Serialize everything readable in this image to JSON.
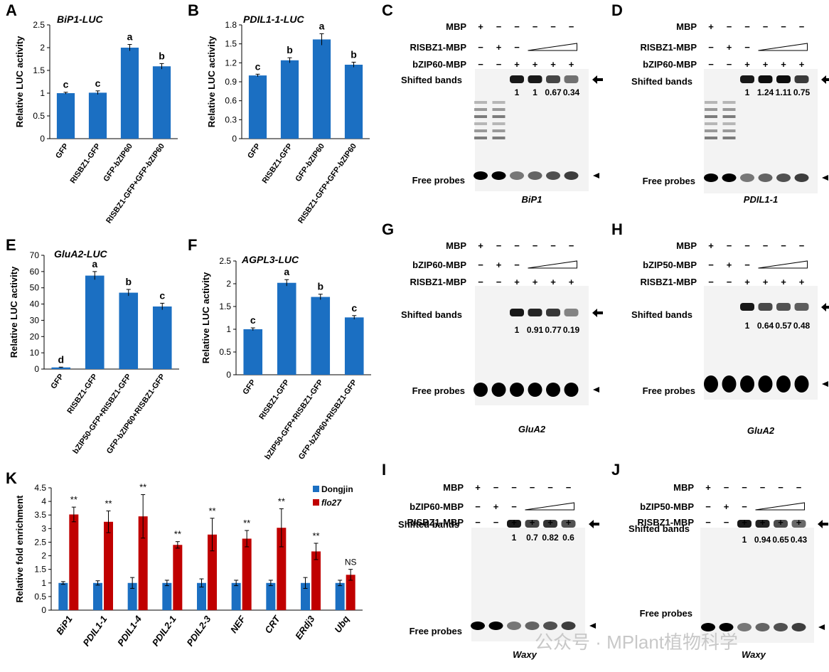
{
  "figure": {
    "colors": {
      "bar": "#1b6fc2",
      "red": "#c00000",
      "axis": "#000000"
    },
    "bar_panels": [
      {
        "letter": "A",
        "title": "BiP1-LUC",
        "ylabel": "Relative LUC activity",
        "ylim": [
          0,
          2.5
        ],
        "ticks": [
          "0",
          "0.5",
          "1",
          "1.5",
          "2",
          "2.5"
        ],
        "tick_values": [
          0,
          0.5,
          1,
          1.5,
          2,
          2.5
        ],
        "categories": [
          "GFP",
          "RISBZ1-GFP",
          "GFP-bZIP60",
          "RISBZ1-GFP+GFP-bZIP60"
        ],
        "values": [
          1.0,
          1.01,
          2.0,
          1.59
        ],
        "errors": [
          0.02,
          0.04,
          0.07,
          0.06
        ],
        "letters": [
          "c",
          "c",
          "a",
          "b"
        ]
      },
      {
        "letter": "B",
        "title": "PDIL1-1-LUC",
        "ylabel": "Relative LUC activity",
        "ylim": [
          0,
          1.8
        ],
        "ticks": [
          "0",
          "0.3",
          "0.6",
          "0.9",
          "1.2",
          "1.5",
          "1.8"
        ],
        "tick_values": [
          0,
          0.3,
          0.6,
          0.9,
          1.2,
          1.5,
          1.8
        ],
        "categories": [
          "GFP",
          "RISBZ1-GFP",
          "GFP-bZIP60",
          "RISBZ1-GFP+GFP-bZIP60"
        ],
        "values": [
          1.0,
          1.24,
          1.57,
          1.17
        ],
        "errors": [
          0.02,
          0.04,
          0.09,
          0.04
        ],
        "letters": [
          "c",
          "b",
          "a",
          "b"
        ]
      },
      {
        "letter": "E",
        "title": "GluA2-LUC",
        "ylabel": "Relative LUC activity",
        "ylim": [
          0,
          70
        ],
        "ticks": [
          "0",
          "10",
          "20",
          "30",
          "40",
          "50",
          "60",
          "70"
        ],
        "tick_values": [
          0,
          10,
          20,
          30,
          40,
          50,
          60,
          70
        ],
        "categories": [
          "GFP",
          "RISBZ1-GFP",
          "bZIP50-GFP+RISBZ1-GFP",
          "GFP-bZIP60+RISBZ1-GFP"
        ],
        "values": [
          1.0,
          57.5,
          47.0,
          38.5
        ],
        "errors": [
          0.2,
          2.5,
          2.0,
          2.0
        ],
        "letters": [
          "d",
          "a",
          "b",
          "c"
        ]
      },
      {
        "letter": "F",
        "title": "AGPL3-LUC",
        "ylabel": "Relative LUC activity",
        "ylim": [
          0,
          2.5
        ],
        "ticks": [
          "0",
          "0.5",
          "1",
          "1.5",
          "2",
          "2.5"
        ],
        "tick_values": [
          0,
          0.5,
          1,
          1.5,
          2,
          2.5
        ],
        "categories": [
          "GFP",
          "RISBZ1-GFP",
          "bZIP50-GFP+RISBZ1-GFP",
          "GFP-bZIP60+RISBZ1-GFP"
        ],
        "values": [
          1.0,
          2.02,
          1.71,
          1.26
        ],
        "errors": [
          0.03,
          0.07,
          0.06,
          0.04
        ],
        "letters": [
          "c",
          "a",
          "b",
          "c"
        ]
      }
    ],
    "chip_panel": {
      "letter": "K",
      "ylabel": "Relative fold enrichment",
      "ylim": [
        0,
        4.5
      ],
      "ticks": [
        "0",
        "0.5",
        "1",
        "1.5",
        "2",
        "2.5",
        "3",
        "3.5",
        "4",
        "4.5"
      ],
      "tick_values": [
        0,
        0.5,
        1,
        1.5,
        2,
        2.5,
        3,
        3.5,
        4,
        4.5
      ],
      "categories": [
        "BiP1",
        "PDIL1-1",
        "PDIL1-4",
        "PDIL2-1",
        "PDIL2-3",
        "NEF",
        "CRT",
        "ERdj3",
        "Ubq"
      ],
      "series": [
        {
          "name": "Dongjin",
          "values": [
            1.0,
            1.0,
            1.0,
            1.0,
            1.0,
            1.0,
            1.0,
            1.0,
            1.0
          ],
          "errors": [
            0.05,
            0.08,
            0.2,
            0.1,
            0.15,
            0.1,
            0.1,
            0.2,
            0.1
          ]
        },
        {
          "name": "flo27",
          "values": [
            3.52,
            3.25,
            3.45,
            2.4,
            2.78,
            2.63,
            3.03,
            2.16,
            1.3
          ],
          "errors": [
            0.27,
            0.4,
            0.8,
            0.12,
            0.6,
            0.3,
            0.7,
            0.3,
            0.2
          ]
        }
      ],
      "sig": [
        "**",
        "**",
        "**",
        "**",
        "**",
        "**",
        "**",
        "**",
        "NS"
      ]
    },
    "emsa_panels": [
      {
        "letter": "C",
        "rows": [
          {
            "label": "MBP",
            "symbols": [
              "+",
              "−",
              "−",
              "−",
              "−",
              "−"
            ]
          },
          {
            "label": "RISBZ1-MBP",
            "symbols": [
              "−",
              "+",
              "−"
            ]
          },
          {
            "label": "bZIP60-MBP",
            "symbols": [
              "−",
              "−",
              "+",
              "+",
              "+",
              "+"
            ]
          }
        ],
        "shifted_label": "Shifted bands",
        "free_label": "Free probes",
        "quant": [
          "1",
          "1",
          "0.67",
          "0.34"
        ],
        "gene": "BiP1"
      },
      {
        "letter": "D",
        "rows": [
          {
            "label": "MBP",
            "symbols": [
              "+",
              "−",
              "−",
              "−",
              "−",
              "−"
            ]
          },
          {
            "label": "RISBZ1-MBP",
            "symbols": [
              "−",
              "+",
              "−"
            ]
          },
          {
            "label": "bZIP60-MBP",
            "symbols": [
              "−",
              "−",
              "+",
              "+",
              "+",
              "+"
            ]
          }
        ],
        "shifted_label": "Shifted bands",
        "free_label": "Free probes",
        "quant": [
          "1",
          "1.24",
          "1.11",
          "0.75"
        ],
        "gene": "PDIL1-1"
      },
      {
        "letter": "G",
        "rows": [
          {
            "label": "MBP",
            "symbols": [
              "+",
              "−",
              "−",
              "−",
              "−",
              "−"
            ]
          },
          {
            "label": "bZIP60-MBP",
            "symbols": [
              "−",
              "+",
              "−"
            ]
          },
          {
            "label": "RISBZ1-MBP",
            "symbols": [
              "−",
              "−",
              "+",
              "+",
              "+",
              "+"
            ]
          }
        ],
        "shifted_label": "Shifted bands",
        "free_label": "Free probes",
        "quant": [
          "1",
          "0.91",
          "0.77",
          "0.19"
        ],
        "gene": "GluA2"
      },
      {
        "letter": "H",
        "rows": [
          {
            "label": "MBP",
            "symbols": [
              "+",
              "−",
              "−",
              "−",
              "−",
              "−"
            ]
          },
          {
            "label": "bZIP50-MBP",
            "symbols": [
              "−",
              "+",
              "−"
            ]
          },
          {
            "label": "RISBZ1-MBP",
            "symbols": [
              "−",
              "−",
              "+",
              "+",
              "+",
              "+"
            ]
          }
        ],
        "shifted_label": "Shifted bands",
        "free_label": "Free probes",
        "quant": [
          "1",
          "0.64",
          "0.57",
          "0.48"
        ],
        "gene": "GluA2"
      },
      {
        "letter": "I",
        "rows": [
          {
            "label": "MBP",
            "symbols": [
              "+",
              "−",
              "−",
              "−",
              "−",
              "−"
            ]
          },
          {
            "label": "bZIP60-MBP",
            "symbols": [
              "−",
              "+",
              "−"
            ]
          },
          {
            "label": "RISBZ1-MBP",
            "symbols": [
              "−",
              "−",
              "+",
              "+",
              "+",
              "+"
            ]
          }
        ],
        "shifted_label": "Shifted bands",
        "free_label": "Free probes",
        "quant": [
          "1",
          "0.7",
          "0.82",
          "0.6"
        ],
        "gene": "Waxy"
      },
      {
        "letter": "J",
        "rows": [
          {
            "label": "MBP",
            "symbols": [
              "+",
              "−",
              "−",
              "−",
              "−",
              "−"
            ]
          },
          {
            "label": "bZIP50-MBP",
            "symbols": [
              "−",
              "+",
              "−"
            ]
          },
          {
            "label": "RISBZ1-MBP",
            "symbols": [
              "−",
              "−",
              "+",
              "+",
              "+",
              "+"
            ]
          }
        ],
        "shifted_label": "Shifted bands",
        "free_label": "Free probes",
        "quant": [
          "1",
          "0.94",
          "0.65",
          "0.43"
        ],
        "gene": "Waxy"
      }
    ],
    "watermark": "公众号 · MPlant植物科学"
  },
  "chart_data": [
    {
      "type": "bar",
      "title": "BiP1-LUC",
      "ylabel": "Relative LUC activity",
      "ylim": [
        0,
        2.5
      ],
      "categories": [
        "GFP",
        "RISBZ1-GFP",
        "GFP-bZIP60",
        "RISBZ1-GFP+GFP-bZIP60"
      ],
      "values": [
        1.0,
        1.01,
        2.0,
        1.59
      ]
    },
    {
      "type": "bar",
      "title": "PDIL1-1-LUC",
      "ylabel": "Relative LUC activity",
      "ylim": [
        0,
        1.8
      ],
      "categories": [
        "GFP",
        "RISBZ1-GFP",
        "GFP-bZIP60",
        "RISBZ1-GFP+GFP-bZIP60"
      ],
      "values": [
        1.0,
        1.24,
        1.57,
        1.17
      ]
    },
    {
      "type": "bar",
      "title": "GluA2-LUC",
      "ylabel": "Relative LUC activity",
      "ylim": [
        0,
        70
      ],
      "categories": [
        "GFP",
        "RISBZ1-GFP",
        "bZIP50-GFP+RISBZ1-GFP",
        "GFP-bZIP60+RISBZ1-GFP"
      ],
      "values": [
        1.0,
        57.5,
        47.0,
        38.5
      ]
    },
    {
      "type": "bar",
      "title": "AGPL3-LUC",
      "ylabel": "Relative LUC activity",
      "ylim": [
        0,
        2.5
      ],
      "categories": [
        "GFP",
        "RISBZ1-GFP",
        "bZIP50-GFP+RISBZ1-GFP",
        "GFP-bZIP60+RISBZ1-GFP"
      ],
      "values": [
        1.0,
        2.02,
        1.71,
        1.26
      ]
    },
    {
      "type": "bar",
      "title": "",
      "ylabel": "Relative fold enrichment",
      "ylim": [
        0,
        4.5
      ],
      "categories": [
        "BiP1",
        "PDIL1-1",
        "PDIL1-4",
        "PDIL2-1",
        "PDIL2-3",
        "NEF",
        "CRT",
        "ERdj3",
        "Ubq"
      ],
      "series": [
        {
          "name": "Dongjin",
          "values": [
            1.0,
            1.0,
            1.0,
            1.0,
            1.0,
            1.0,
            1.0,
            1.0,
            1.0
          ]
        },
        {
          "name": "flo27",
          "values": [
            3.52,
            3.25,
            3.45,
            2.4,
            2.78,
            2.63,
            3.03,
            2.16,
            1.3
          ]
        }
      ]
    }
  ]
}
